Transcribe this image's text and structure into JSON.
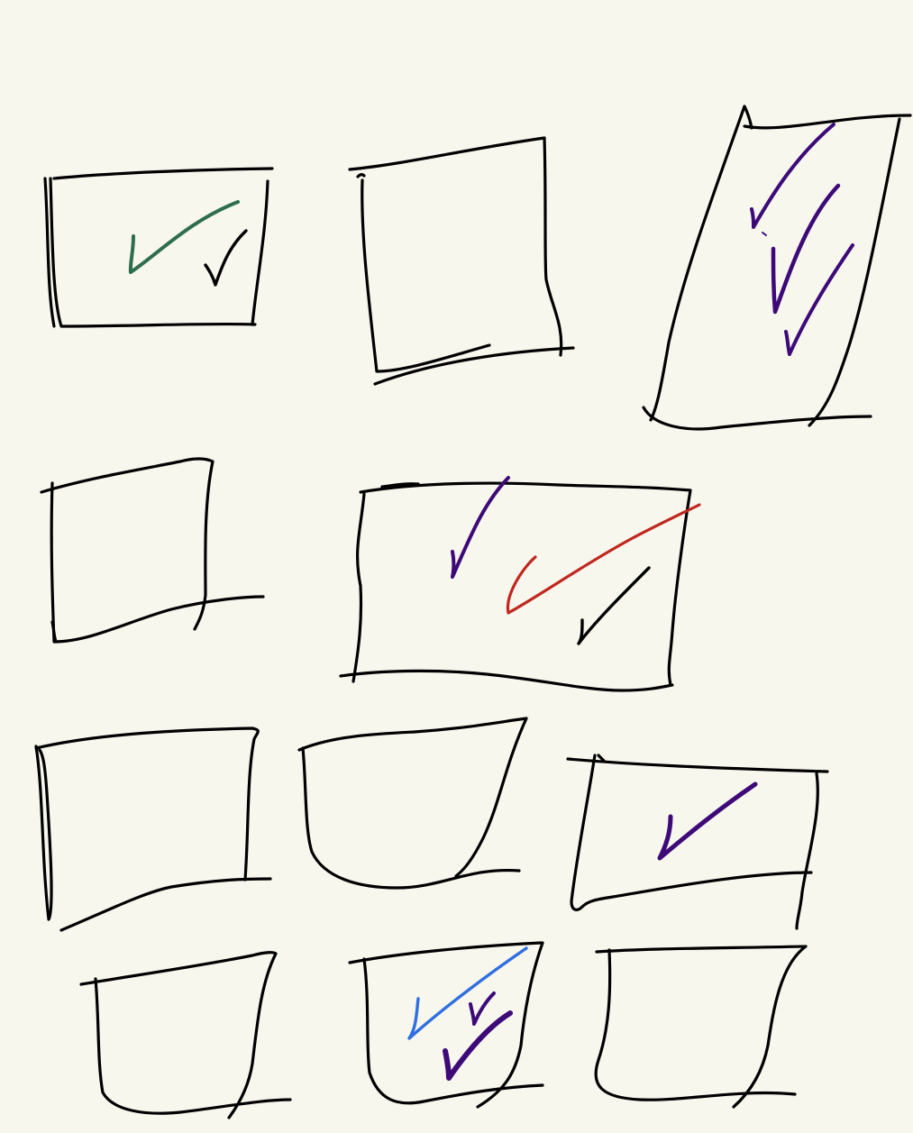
{
  "canvas": {
    "background": "#f7f7ee"
  },
  "ink_colors": {
    "outline": "#000000",
    "green": "#2e6e4e",
    "purple": "#3d0a78",
    "red": "#c0281e",
    "blue": "#2f6fe0"
  },
  "sketches": [
    {
      "name": "box-1",
      "checks": [
        "green",
        "black"
      ]
    },
    {
      "name": "box-2",
      "checks": []
    },
    {
      "name": "box-3",
      "checks": [
        "purple",
        "purple",
        "purple"
      ]
    },
    {
      "name": "box-4",
      "checks": []
    },
    {
      "name": "box-5",
      "checks": [
        "purple",
        "red",
        "black"
      ]
    },
    {
      "name": "box-6",
      "checks": []
    },
    {
      "name": "box-7",
      "checks": []
    },
    {
      "name": "box-8",
      "checks": [
        "purple"
      ]
    },
    {
      "name": "box-9",
      "checks": []
    },
    {
      "name": "box-10",
      "checks": [
        "blue",
        "purple",
        "purple"
      ]
    },
    {
      "name": "box-11",
      "checks": []
    }
  ]
}
